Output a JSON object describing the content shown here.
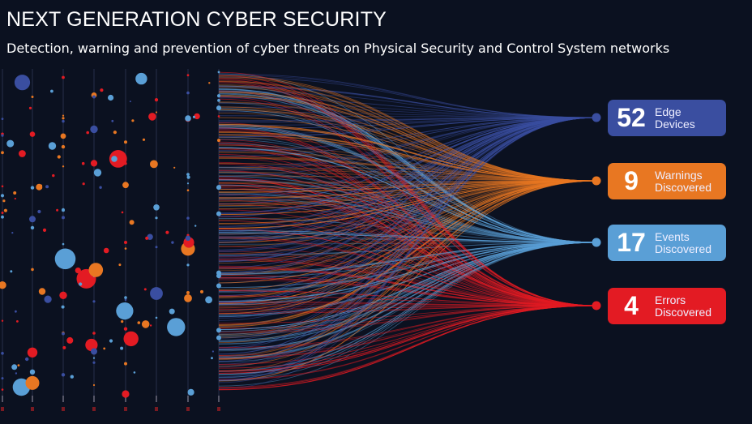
{
  "header": {
    "title": "NEXT GENERATION CYBER SECURITY",
    "subtitle": "Detection, warning and prevention of cyber threats on Physical Security and Control System networks"
  },
  "summary": [
    {
      "value": "52",
      "label_line1": "Edge",
      "label_line2": "Devices",
      "color": "#3a4ea0"
    },
    {
      "value": "9",
      "label_line1": "Warnings",
      "label_line2": "Discovered",
      "color": "#e87722"
    },
    {
      "value": "17",
      "label_line1": "Events",
      "label_line2": "Discovered",
      "color": "#5a9fd6"
    },
    {
      "value": "4",
      "label_line1": "Errors",
      "label_line2": "Discovered",
      "color": "#e31b23"
    }
  ],
  "colors": {
    "background": "#0b1120",
    "edge": "#3a4ea0",
    "warning": "#e87722",
    "event": "#5a9fd6",
    "error": "#e31b23"
  }
}
